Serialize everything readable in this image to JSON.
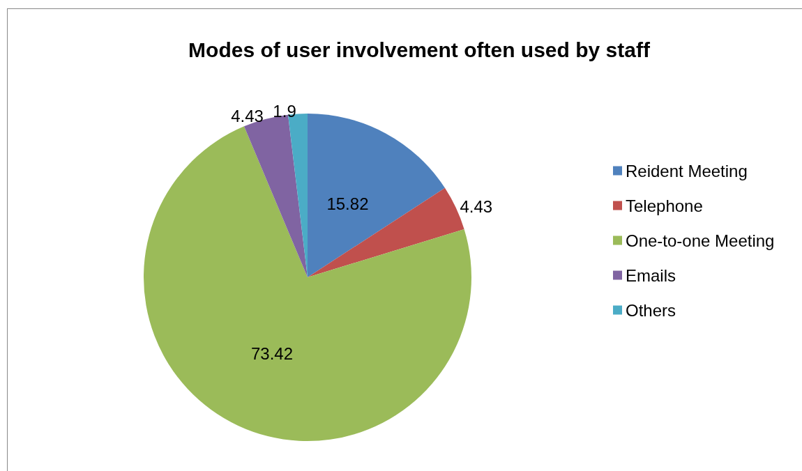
{
  "chart_data": {
    "type": "pie",
    "title": "Modes of user involvement often used by staff",
    "categories": [
      "Reident Meeting",
      "Telephone",
      "One-to-one Meeting",
      "Emails",
      "Others"
    ],
    "values": [
      15.82,
      4.43,
      73.42,
      4.43,
      1.9
    ],
    "colors": [
      "#4f81bd",
      "#c0504d",
      "#9bbb59",
      "#8064a2",
      "#4bacc6"
    ],
    "data_labels": true,
    "legend": "right"
  }
}
